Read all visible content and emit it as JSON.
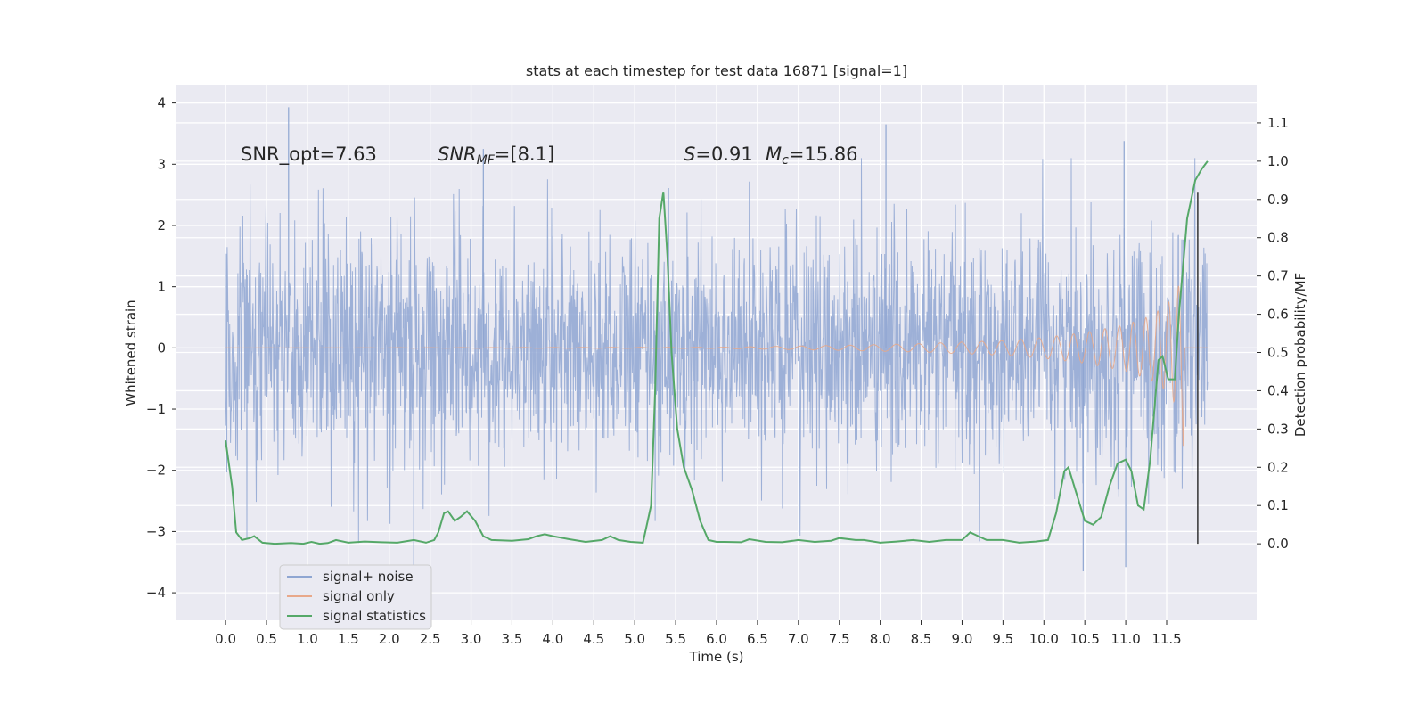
{
  "chart_data": {
    "type": "line",
    "title": "stats at each timestep for test data 16871 [signal=1]",
    "xlabel": "Time (s)",
    "ylabel": "Whitened strain",
    "y2label": "Detection probability/MF",
    "xlim": [
      -0.6,
      12.6
    ],
    "ylim": [
      -4.45,
      4.3
    ],
    "y2lim": [
      -0.2,
      1.2
    ],
    "grid": true,
    "legend_position": "bottom-left",
    "x_ticks": [
      "0.0",
      "0.5",
      "1.0",
      "1.5",
      "2.0",
      "2.5",
      "3.0",
      "3.5",
      "4.0",
      "4.5",
      "5.0",
      "5.5",
      "6.0",
      "6.5",
      "7.0",
      "7.5",
      "8.0",
      "8.5",
      "9.0",
      "9.5",
      "10.0",
      "10.5",
      "11.0",
      "11.5"
    ],
    "y_ticks": [
      "4",
      "3",
      "2",
      "1",
      "0",
      "−1",
      "−2",
      "−3",
      "−4"
    ],
    "y2_ticks": [
      "1.1",
      "1.0",
      "0.9",
      "0.8",
      "0.7",
      "0.6",
      "0.5",
      "0.4",
      "0.3",
      "0.2",
      "0.1",
      "0.0"
    ],
    "annotations": {
      "snr_opt": "SNR_opt=7.63",
      "snr_mf_main": "SNR",
      "snr_mf_sub": "MF",
      "snr_mf_value": "=[8.1]",
      "s_symbol": "S",
      "s_value": "=0.91",
      "mc_symbol": "M",
      "mc_sub": "c",
      "mc_value": "=15.86"
    },
    "series": [
      {
        "name": "signal+ noise",
        "color": "#8fa6d2",
        "description_axis": "left",
        "x_range": [
          0.0,
          12.0
        ],
        "noise_sigma": 0.95,
        "peak_values": [
          {
            "x": 0.77,
            "y": 3.93
          },
          {
            "x": 8.07,
            "y": 3.65
          },
          {
            "x": 10.98,
            "y": 3.38
          },
          {
            "x": 3.15,
            "y": 3.25
          },
          {
            "x": 10.48,
            "y": -3.65
          },
          {
            "x": 11.0,
            "y": -3.58
          },
          {
            "x": 2.3,
            "y": -3.62
          }
        ]
      },
      {
        "name": "signal only",
        "color": "#e8a88a",
        "description_axis": "left",
        "x_range": [
          0.0,
          12.0
        ],
        "envelope": [
          [
            0.0,
            0.0
          ],
          [
            6.0,
            0.01
          ],
          [
            7.5,
            0.04
          ],
          [
            8.5,
            0.07
          ],
          [
            9.5,
            0.12
          ],
          [
            10.0,
            0.17
          ],
          [
            10.5,
            0.25
          ],
          [
            11.0,
            0.38
          ],
          [
            11.3,
            0.52
          ],
          [
            11.5,
            0.7
          ],
          [
            11.62,
            0.95
          ],
          [
            11.68,
            1.1
          ]
        ],
        "ringdown_dip": {
          "x": 11.7,
          "y": -1.6
        }
      },
      {
        "name": "signal statistics",
        "color": "#55a868",
        "description_axis": "right",
        "points": [
          [
            0.0,
            0.27
          ],
          [
            0.08,
            0.15
          ],
          [
            0.13,
            0.03
          ],
          [
            0.2,
            0.01
          ],
          [
            0.3,
            0.015
          ],
          [
            0.35,
            0.02
          ],
          [
            0.45,
            0.003
          ],
          [
            0.6,
            0.0
          ],
          [
            0.8,
            0.002
          ],
          [
            0.95,
            0.0
          ],
          [
            1.05,
            0.005
          ],
          [
            1.15,
            0.0
          ],
          [
            1.25,
            0.002
          ],
          [
            1.35,
            0.01
          ],
          [
            1.5,
            0.003
          ],
          [
            1.7,
            0.006
          ],
          [
            1.9,
            0.004
          ],
          [
            2.1,
            0.003
          ],
          [
            2.3,
            0.01
          ],
          [
            2.45,
            0.003
          ],
          [
            2.55,
            0.01
          ],
          [
            2.6,
            0.03
          ],
          [
            2.67,
            0.08
          ],
          [
            2.72,
            0.085
          ],
          [
            2.8,
            0.06
          ],
          [
            2.87,
            0.07
          ],
          [
            2.95,
            0.085
          ],
          [
            3.05,
            0.06
          ],
          [
            3.15,
            0.02
          ],
          [
            3.25,
            0.01
          ],
          [
            3.5,
            0.008
          ],
          [
            3.7,
            0.012
          ],
          [
            3.8,
            0.02
          ],
          [
            3.9,
            0.025
          ],
          [
            4.0,
            0.02
          ],
          [
            4.2,
            0.012
          ],
          [
            4.4,
            0.005
          ],
          [
            4.6,
            0.01
          ],
          [
            4.7,
            0.02
          ],
          [
            4.8,
            0.01
          ],
          [
            4.95,
            0.005
          ],
          [
            5.1,
            0.003
          ],
          [
            5.2,
            0.1
          ],
          [
            5.25,
            0.4
          ],
          [
            5.3,
            0.85
          ],
          [
            5.35,
            0.92
          ],
          [
            5.4,
            0.75
          ],
          [
            5.45,
            0.5
          ],
          [
            5.52,
            0.3
          ],
          [
            5.6,
            0.2
          ],
          [
            5.7,
            0.14
          ],
          [
            5.8,
            0.06
          ],
          [
            5.9,
            0.01
          ],
          [
            6.0,
            0.005
          ],
          [
            6.1,
            0.005
          ],
          [
            6.3,
            0.004
          ],
          [
            6.4,
            0.012
          ],
          [
            6.6,
            0.005
          ],
          [
            6.8,
            0.004
          ],
          [
            7.0,
            0.01
          ],
          [
            7.2,
            0.005
          ],
          [
            7.4,
            0.008
          ],
          [
            7.5,
            0.015
          ],
          [
            7.7,
            0.01
          ],
          [
            7.8,
            0.01
          ],
          [
            8.0,
            0.003
          ],
          [
            8.2,
            0.006
          ],
          [
            8.4,
            0.01
          ],
          [
            8.6,
            0.005
          ],
          [
            8.8,
            0.01
          ],
          [
            9.0,
            0.01
          ],
          [
            9.1,
            0.03
          ],
          [
            9.2,
            0.02
          ],
          [
            9.3,
            0.01
          ],
          [
            9.5,
            0.01
          ],
          [
            9.7,
            0.003
          ],
          [
            9.9,
            0.006
          ],
          [
            10.05,
            0.01
          ],
          [
            10.15,
            0.08
          ],
          [
            10.25,
            0.19
          ],
          [
            10.3,
            0.2
          ],
          [
            10.4,
            0.13
          ],
          [
            10.5,
            0.06
          ],
          [
            10.6,
            0.05
          ],
          [
            10.7,
            0.07
          ],
          [
            10.8,
            0.15
          ],
          [
            10.9,
            0.21
          ],
          [
            11.0,
            0.22
          ],
          [
            11.07,
            0.19
          ],
          [
            11.15,
            0.1
          ],
          [
            11.22,
            0.09
          ],
          [
            11.3,
            0.22
          ],
          [
            11.4,
            0.48
          ],
          [
            11.45,
            0.49
          ],
          [
            11.52,
            0.43
          ],
          [
            11.6,
            0.43
          ],
          [
            11.65,
            0.6
          ],
          [
            11.75,
            0.85
          ],
          [
            11.85,
            0.95
          ],
          [
            11.93,
            0.98
          ],
          [
            12.0,
            1.0
          ]
        ]
      }
    ],
    "vertical_marker": {
      "x": 11.88,
      "y2_from": 0.0,
      "y2_to": 0.92,
      "color": "#333333"
    }
  },
  "legend": [
    {
      "label": "signal+ noise",
      "color": "#8fa6d2"
    },
    {
      "label": "signal only",
      "color": "#e8a88a"
    },
    {
      "label": "signal statistics",
      "color": "#55a868"
    }
  ]
}
